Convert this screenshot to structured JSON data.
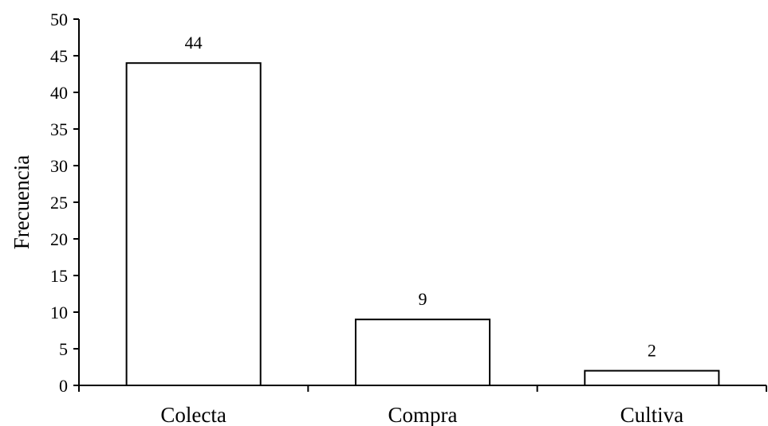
{
  "chart_data": {
    "type": "bar",
    "title": "",
    "xlabel": "",
    "ylabel": "Frecuencia",
    "categories": [
      "Colecta",
      "Compra",
      "Cultiva"
    ],
    "values": [
      44,
      9,
      2
    ],
    "data_labels": [
      "44",
      "9",
      "2"
    ],
    "ylim": [
      0,
      50
    ],
    "yticks": [
      0,
      5,
      10,
      15,
      20,
      25,
      30,
      35,
      40,
      45,
      50
    ],
    "grid": false,
    "legend": "none",
    "bar_fill": "#ffffff",
    "bar_stroke": "#000000"
  }
}
